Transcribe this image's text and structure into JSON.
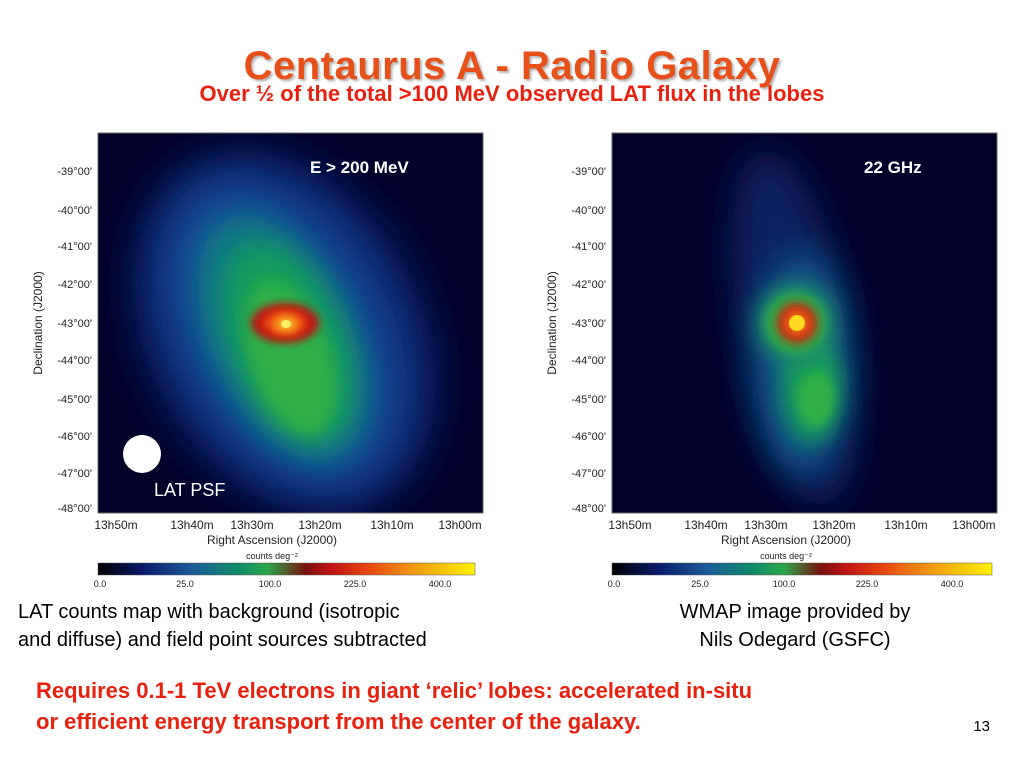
{
  "slide": {
    "title": "Centaurus A - Radio Galaxy",
    "subtitle": "Over ½ of the total >100 MeV observed LAT flux in the lobes",
    "caption_left": [
      "LAT counts map with background (isotropic",
      "and diffuse) and field point sources subtracted"
    ],
    "caption_right": [
      "WMAP image provided by",
      "Nils Odegard (GSFC)"
    ],
    "conclusion": [
      "Requires 0.1-1 TeV electrons in giant ‘relic’ lobes: accelerated in-situ",
      "or efficient energy transport from the center of the galaxy."
    ],
    "page_number": "13"
  },
  "maps": {
    "left": {
      "label": "E > 200 MeV",
      "psf_label": "LAT PSF"
    },
    "right": {
      "label": "22 GHz"
    },
    "y_axis_label": "Declination (J2000)",
    "x_axis_label": "Right Ascension (J2000)",
    "y_ticks": [
      "-39°00'",
      "-40°00'",
      "-41°00'",
      "-42°00'",
      "-43°00'",
      "-44°00'",
      "-45°00'",
      "-46°00'",
      "-47°00'",
      "-48°00'"
    ],
    "x_ticks": [
      "13h50m",
      "13h40m",
      "13h30m",
      "13h20m",
      "13h10m",
      "13h00m"
    ],
    "colorbar_label": "counts deg⁻²",
    "colorbar_ticks": [
      "0.0",
      "25.0",
      "100.0",
      "225.0",
      "400.0"
    ]
  },
  "colors": {
    "title": "#e8501a",
    "subtitle": "#e8200e",
    "conclusion": "#e8200e",
    "map_background": "#02012a"
  }
}
